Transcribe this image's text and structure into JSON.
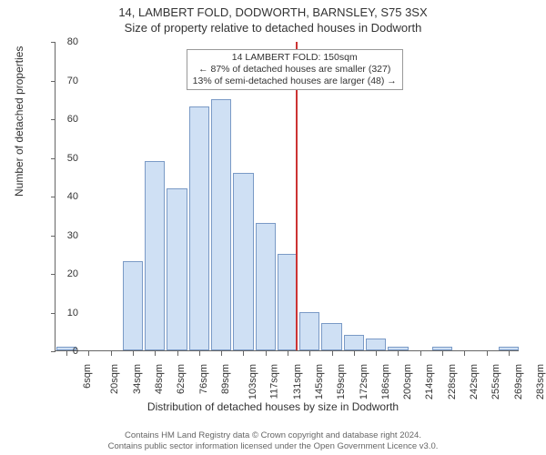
{
  "title_main": "14, LAMBERT FOLD, DODWORTH, BARNSLEY, S75 3SX",
  "title_sub": "Size of property relative to detached houses in Dodworth",
  "y_axis_label": "Number of detached properties",
  "x_axis_label": "Distribution of detached houses by size in Dodworth",
  "footer_line1": "Contains HM Land Registry data © Crown copyright and database right 2024.",
  "footer_line2": "Contains public sector information licensed under the Open Government Licence v3.0.",
  "callout": {
    "line1": "14 LAMBERT FOLD: 150sqm",
    "line2": "← 87% of detached houses are smaller (327)",
    "line3": "13% of semi-detached houses are larger (48) →"
  },
  "chart": {
    "type": "histogram",
    "ylim": [
      0,
      80
    ],
    "ytick_step": 10,
    "background_color": "#ffffff",
    "bar_fill": "#cfe0f4",
    "bar_stroke": "#7a9ac6",
    "axis_color": "#666666",
    "ref_line_color": "#cc3333",
    "ref_line_value": 150,
    "title_fontsize": 13,
    "label_fontsize": 12,
    "tick_fontsize": 11,
    "x_labels": [
      "6sqm",
      "20sqm",
      "34sqm",
      "48sqm",
      "62sqm",
      "76sqm",
      "89sqm",
      "103sqm",
      "117sqm",
      "131sqm",
      "145sqm",
      "159sqm",
      "172sqm",
      "186sqm",
      "200sqm",
      "214sqm",
      "228sqm",
      "242sqm",
      "255sqm",
      "269sqm",
      "283sqm"
    ],
    "values": [
      1,
      0,
      0,
      23,
      49,
      42,
      63,
      65,
      46,
      33,
      25,
      10,
      7,
      4,
      3,
      1,
      0,
      1,
      0,
      0,
      1
    ]
  }
}
